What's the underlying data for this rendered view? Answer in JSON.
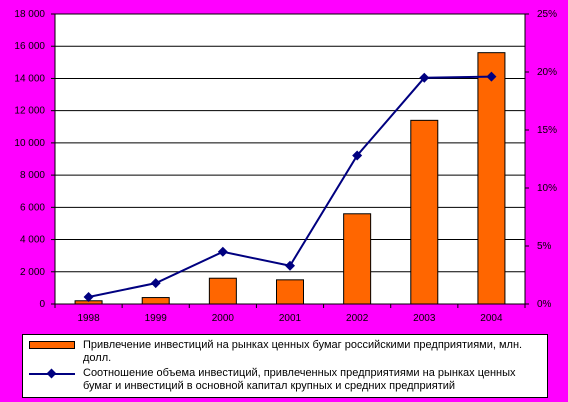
{
  "chart_data": {
    "type": "bar+line",
    "categories": [
      "1998",
      "1999",
      "2000",
      "2001",
      "2002",
      "2003",
      "2004"
    ],
    "series": [
      {
        "name": "Привлечение инвестиций на рынках ценных бумаг российскими предприятиями, млн. долл.",
        "type": "bar",
        "axis": "left",
        "values": [
          200,
          400,
          1600,
          1500,
          5600,
          11400,
          15600
        ],
        "color": "#ff6600"
      },
      {
        "name": "Соотношение объема инвестиций, привлеченных предприятиями на рынках ценных бумаг и инвестиций в основной капитал крупных и средних предприятий",
        "type": "line",
        "axis": "right",
        "values": [
          0.6,
          1.8,
          4.5,
          3.3,
          12.8,
          19.5,
          19.6
        ],
        "color": "#000080"
      }
    ],
    "left_axis": {
      "ylim": [
        0,
        18000
      ],
      "ticks": [
        0,
        2000,
        4000,
        6000,
        8000,
        10000,
        12000,
        14000,
        16000,
        18000
      ],
      "tick_labels": [
        "0",
        "2 000",
        "4 000",
        "6 000",
        "8 000",
        "10 000",
        "12 000",
        "14 000",
        "16 000",
        "18 000"
      ]
    },
    "right_axis": {
      "ylim": [
        0,
        25
      ],
      "ticks": [
        0,
        5,
        10,
        15,
        20,
        25
      ],
      "tick_labels": [
        "0%",
        "5%",
        "10%",
        "15%",
        "20%",
        "25%"
      ]
    },
    "grid": "horizontal",
    "legend": "bottom",
    "background": "#ff00ff",
    "plot_background": "#ffffff"
  }
}
